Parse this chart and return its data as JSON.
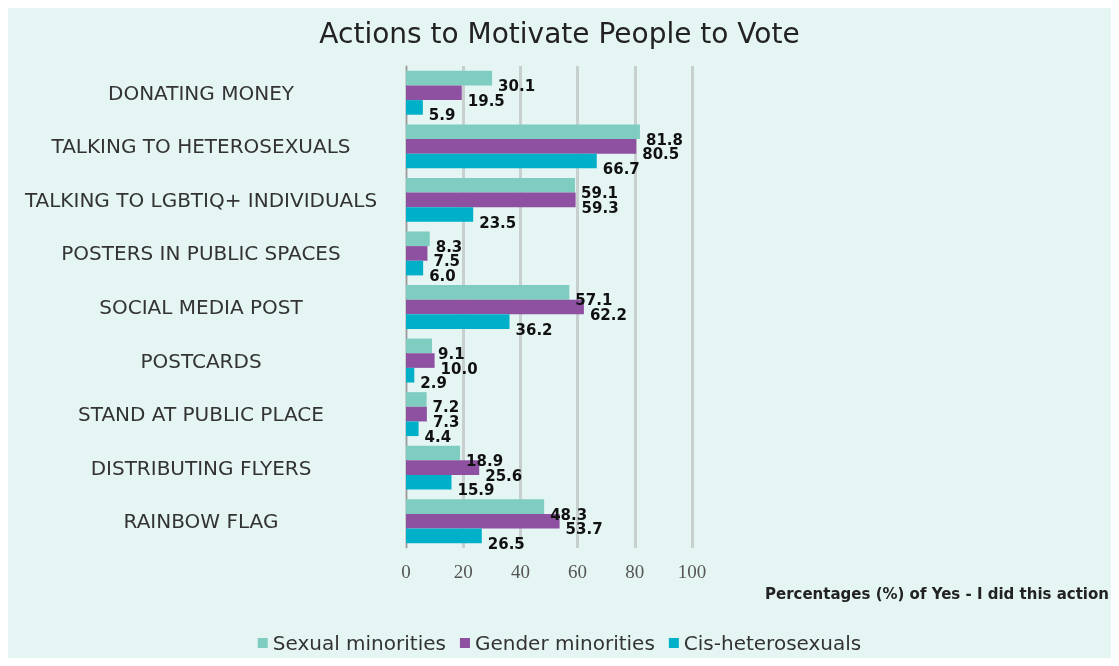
{
  "chart_data": {
    "type": "bar",
    "orientation": "horizontal",
    "title": "Actions to Motivate People to Vote",
    "xlabel": "Percentages (%) of Yes - I did this action",
    "categories": [
      "DONATING MONEY",
      "TALKING TO HETEROSEXUALS",
      "TALKING TO LGBTIQ+ INDIVIDUALS",
      "POSTERS IN PUBLIC SPACES",
      "SOCIAL MEDIA POST",
      "POSTCARDS",
      "STAND AT PUBLIC PLACE",
      "DISTRIBUTING FLYERS",
      "RAINBOW FLAG"
    ],
    "series": [
      {
        "name": "Sexual minorities",
        "color": "#7ecdc0",
        "values": [
          30.1,
          81.8,
          59.1,
          8.3,
          57.1,
          9.1,
          7.2,
          18.9,
          48.3
        ],
        "value_labels": [
          "30.1",
          "81.8",
          "59.1",
          "8.3",
          "57.1",
          "9.1",
          "7.2",
          "18.9",
          "48.3"
        ]
      },
      {
        "name": "Gender minorities",
        "color": "#8e50a0",
        "values": [
          19.5,
          80.5,
          59.3,
          7.5,
          62.2,
          10.0,
          7.3,
          25.6,
          53.7
        ],
        "value_labels": [
          "19.5",
          "80.5",
          "59.3",
          "7.5",
          "62.2",
          "10.0",
          "7.3",
          "25.6",
          "53.7"
        ]
      },
      {
        "name": "Cis-heterosexuals",
        "color": "#00b0c8",
        "values": [
          5.9,
          66.7,
          23.5,
          6.0,
          36.2,
          2.9,
          4.4,
          15.9,
          26.5
        ],
        "value_labels": [
          "5.9",
          "66.7",
          "23.5",
          "6.0",
          "36.2",
          "2.9",
          "4.4",
          "15.9",
          "26.5"
        ]
      }
    ],
    "xlim": [
      0,
      100
    ],
    "xticks": [
      0,
      20,
      40,
      60,
      80,
      100
    ],
    "grid": "x",
    "legend": "bottom"
  }
}
